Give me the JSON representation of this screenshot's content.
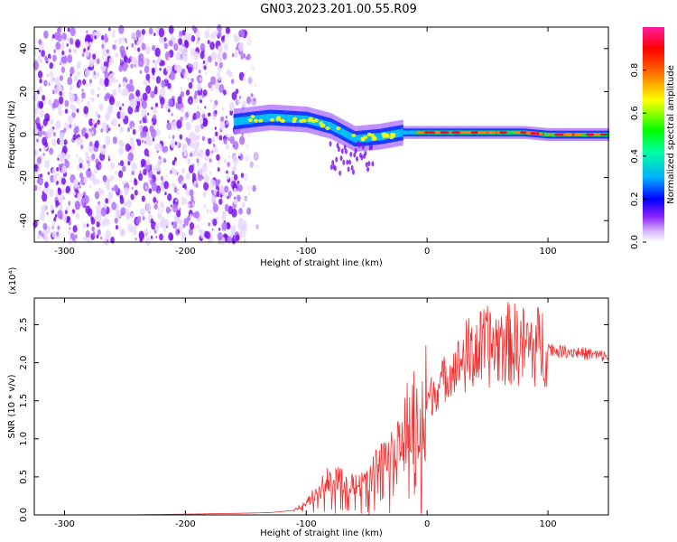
{
  "title": "GN03.2023.201.00.55.R09",
  "colors": {
    "snr_line": "#f03030",
    "axis": "#000000",
    "spectrogram_palette": [
      "#ffffff",
      "#e8d8ff",
      "#b070ff",
      "#7a10f0",
      "#0030ff",
      "#00c8ff",
      "#00ff40",
      "#ffff00",
      "#ff8000",
      "#ff0040",
      "#ff2090"
    ]
  },
  "chart_data": [
    {
      "type": "heatmap",
      "title": "",
      "xlabel": "Height of straight line (km)",
      "ylabel": "Frequency (Hz)",
      "xlim": [
        -325,
        150
      ],
      "ylim": [
        -50,
        50
      ],
      "xticks": [
        -300,
        -200,
        -100,
        0,
        100
      ],
      "yticks": [
        -40,
        -20,
        0,
        20,
        40
      ],
      "description_series": [
        {
          "x": -320,
          "y_center": 0,
          "amplitude": 0.15,
          "kind": "noise"
        },
        {
          "x": -160,
          "y_center": 6,
          "amplitude": 0.55
        },
        {
          "x": -130,
          "y_center": 8,
          "amplitude": 0.6
        },
        {
          "x": -100,
          "y_center": 7,
          "amplitude": 0.55
        },
        {
          "x": -80,
          "y_center": 4,
          "amplitude": 0.5
        },
        {
          "x": -60,
          "y_center": -2,
          "amplitude": 0.45
        },
        {
          "x": -40,
          "y_center": -1,
          "amplitude": 0.5
        },
        {
          "x": -20,
          "y_center": 1,
          "amplitude": 0.7
        },
        {
          "x": 0,
          "y_center": 1,
          "amplitude": 0.8
        },
        {
          "x": 40,
          "y_center": 1,
          "amplitude": 0.85
        },
        {
          "x": 80,
          "y_center": 1,
          "amplitude": 0.85
        },
        {
          "x": 100,
          "y_center": 0,
          "amplitude": 0.9
        },
        {
          "x": 150,
          "y_center": 0,
          "amplitude": 0.95
        }
      ],
      "colorbar": {
        "label": "Normalized spectral amplitude",
        "range": [
          0.0,
          1.0
        ],
        "ticks": [
          "0.0",
          "0.2",
          "0.4",
          "0.6",
          "0.8"
        ]
      }
    },
    {
      "type": "line",
      "title": "",
      "xlabel": "Height of straight line (km)",
      "ylabel": "SNR (10 * v/v)",
      "y_scale_note": "(x10⁴)",
      "xlim": [
        -325,
        150
      ],
      "ylim": [
        0,
        2.85
      ],
      "xticks": [
        -300,
        -200,
        -100,
        0,
        100
      ],
      "yticks": [
        "0.0",
        "0.5",
        "1.0",
        "1.5",
        "2.0",
        "2.5"
      ],
      "series": [
        {
          "x": [
            -325,
            -300,
            -250,
            -200,
            -160,
            -130,
            -110,
            -100,
            -90,
            -80,
            -70,
            -60,
            -50,
            -40,
            -30,
            -20,
            -15,
            -10,
            -5,
            0,
            5,
            10,
            15,
            20,
            30,
            40,
            50,
            60,
            70,
            80,
            90,
            95,
            100,
            110,
            120,
            130,
            140,
            150
          ],
          "y": [
            0.0,
            0.0,
            0.0,
            0.01,
            0.02,
            0.03,
            0.06,
            0.15,
            0.35,
            0.5,
            0.45,
            0.4,
            0.45,
            0.7,
            0.8,
            1.0,
            1.2,
            1.25,
            1.35,
            1.5,
            1.6,
            1.7,
            1.8,
            1.9,
            2.05,
            2.15,
            2.2,
            2.25,
            2.25,
            2.22,
            2.2,
            2.25,
            2.2,
            2.15,
            2.15,
            2.12,
            2.1,
            2.08
          ]
        }
      ]
    }
  ]
}
